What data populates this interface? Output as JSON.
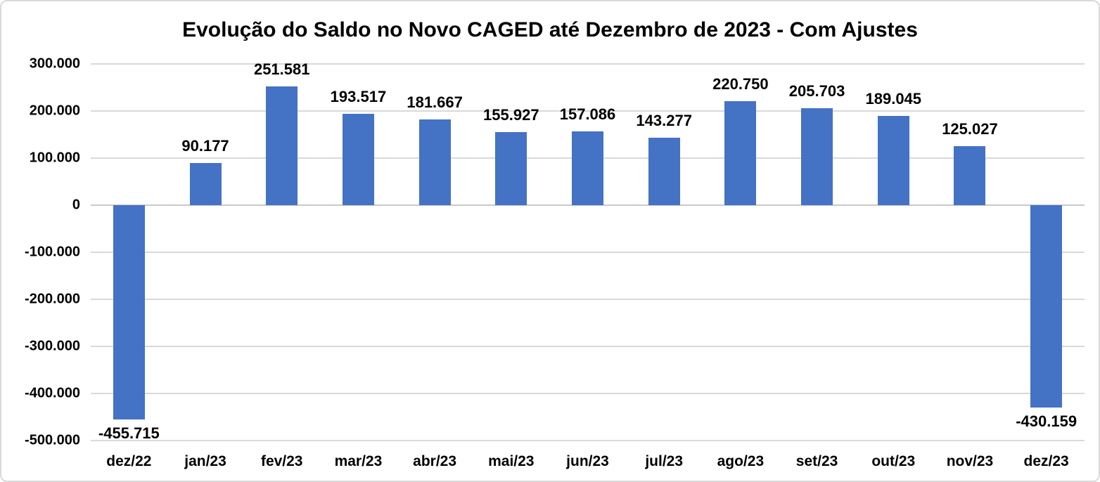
{
  "chart_data": {
    "type": "bar",
    "title": "Evolução do Saldo no Novo CAGED até Dezembro de 2023 - Com Ajustes",
    "categories": [
      "dez/22",
      "jan/23",
      "fev/23",
      "mar/23",
      "abr/23",
      "mai/23",
      "jun/23",
      "jul/23",
      "ago/23",
      "set/23",
      "out/23",
      "nov/23",
      "dez/23"
    ],
    "values": [
      -455715,
      90177,
      251581,
      193517,
      181667,
      155927,
      157086,
      143277,
      220750,
      205703,
      189045,
      125027,
      -430159
    ],
    "data_labels": [
      "-455.715",
      "90.177",
      "251.581",
      "193.517",
      "181.667",
      "155.927",
      "157.086",
      "143.277",
      "220.750",
      "205.703",
      "189.045",
      "125.027",
      "-430.159"
    ],
    "xlabel": "",
    "ylabel": "",
    "ylim": [
      -500000,
      300000
    ],
    "y_tick_step": 100000,
    "y_tick_labels": [
      "300.000",
      "200.000",
      "100.000",
      "0",
      "-100.000",
      "-200.000",
      "-300.000",
      "-400.000",
      "-500.000"
    ],
    "grid": "horizontal gridlines on, behind bars",
    "legend_position": "none",
    "bar_color": "#4472C4",
    "gridline_color": "#D9D9D9",
    "frame_color": "#D9D9D9",
    "text_color": "#000000",
    "background_color": "#FFFFFF"
  }
}
